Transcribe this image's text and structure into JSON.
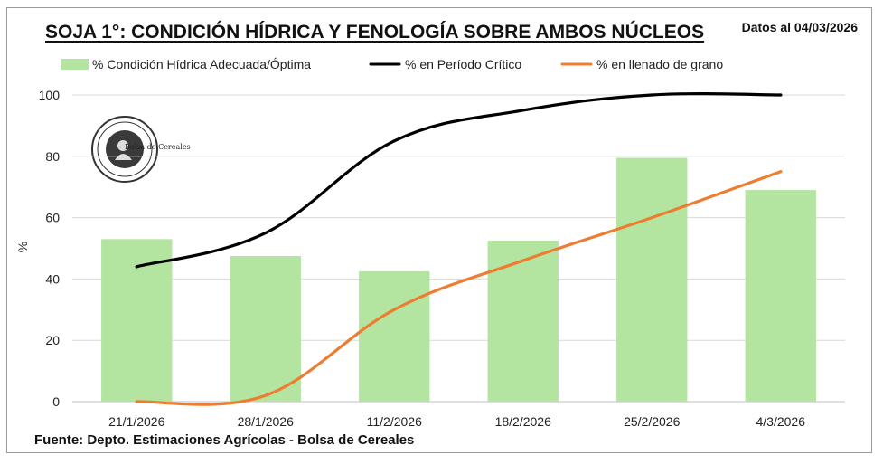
{
  "header": {
    "title": "SOJA 1°: CONDICIÓN HÍDRICA Y FENOLOGÍA SOBRE AMBOS NÚCLEOS",
    "date_label": "Datos al 04/03/2026"
  },
  "footer": {
    "source": "Fuente: Depto. Estimaciones Agrícolas - Bolsa de Cereales"
  },
  "logo": {
    "text": "Bolsa de Cereales"
  },
  "chart_data": {
    "type": "bar",
    "title": "SOJA 1°: CONDICIÓN HÍDRICA Y FENOLOGÍA SOBRE AMBOS NÚCLEOS",
    "xlabel": "",
    "ylabel": "%",
    "ylim": [
      0,
      100
    ],
    "yticks": [
      0,
      20,
      40,
      60,
      80,
      100
    ],
    "grid": true,
    "legend_position": "top",
    "categories": [
      "21/1/2026",
      "28/1/2026",
      "11/2/2026",
      "18/2/2026",
      "25/2/2026",
      "4/3/2026"
    ],
    "series": [
      {
        "name": "% Condición Hídrica Adecuada/Óptima",
        "type": "bar",
        "color": "#b3e5a1",
        "values": [
          53,
          47.5,
          42.5,
          52.5,
          79.5,
          69
        ]
      },
      {
        "name": "% en Período Crítico",
        "type": "line",
        "color": "#000000",
        "values": [
          44,
          55,
          85,
          95,
          100,
          100
        ]
      },
      {
        "name": "% en llenado de grano",
        "type": "line",
        "color": "#ed7d31",
        "values": [
          0,
          2,
          30,
          46,
          60,
          75
        ]
      }
    ]
  }
}
